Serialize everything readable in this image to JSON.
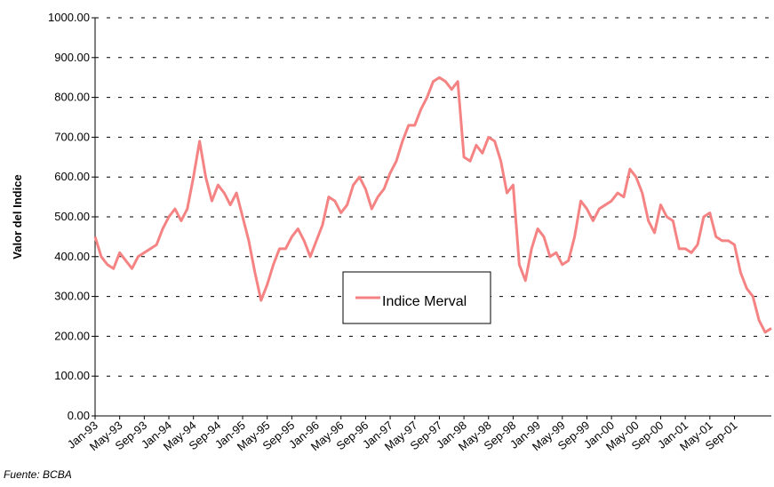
{
  "chart_data": {
    "type": "line",
    "y_label": "Valor del Indice",
    "source": "Fuente: BCBA",
    "categories": [
      "Jan-93",
      null,
      null,
      null,
      "May-93",
      null,
      null,
      null,
      "Sep-93",
      null,
      null,
      null,
      "Jan-94",
      null,
      null,
      null,
      "May-94",
      null,
      null,
      null,
      "Sep-94",
      null,
      null,
      null,
      "Jan-95",
      null,
      null,
      null,
      "May-95",
      null,
      null,
      null,
      "Sep-95",
      null,
      null,
      null,
      "Jan-96",
      null,
      null,
      null,
      "May-96",
      null,
      null,
      null,
      "Sep-96",
      null,
      null,
      null,
      "Jan-97",
      null,
      null,
      null,
      "May-97",
      null,
      null,
      null,
      "Sep-97",
      null,
      null,
      null,
      "Jan-98",
      null,
      null,
      null,
      "May-98",
      null,
      null,
      null,
      "Sep-98",
      null,
      null,
      null,
      "Jan-99",
      null,
      null,
      null,
      "May-99",
      null,
      null,
      null,
      "Sep-99",
      null,
      null,
      null,
      "Jan-00",
      null,
      null,
      null,
      "May-00",
      null,
      null,
      null,
      "Sep-00",
      null,
      null,
      null,
      "Jan-01",
      null,
      null,
      null,
      "May-01",
      null,
      null,
      null,
      "Sep-01",
      null,
      null,
      null,
      null,
      null,
      null
    ],
    "series": [
      {
        "name": "Indice Merval",
        "color": "#f58383",
        "values": [
          450,
          400,
          380,
          370,
          410,
          390,
          370,
          400,
          410,
          420,
          430,
          470,
          500,
          520,
          490,
          520,
          600,
          690,
          600,
          540,
          580,
          560,
          530,
          560,
          500,
          440,
          360,
          290,
          330,
          380,
          420,
          420,
          450,
          470,
          440,
          400,
          440,
          480,
          550,
          540,
          510,
          530,
          580,
          600,
          570,
          520,
          550,
          570,
          610,
          640,
          690,
          730,
          730,
          770,
          800,
          840,
          850,
          840,
          820,
          840,
          650,
          640,
          680,
          660,
          700,
          690,
          640,
          560,
          580,
          380,
          340,
          420,
          470,
          450,
          400,
          410,
          380,
          390,
          450,
          540,
          520,
          490,
          520,
          530,
          540,
          560,
          550,
          620,
          600,
          560,
          490,
          460,
          530,
          500,
          490,
          420,
          420,
          410,
          430,
          500,
          510,
          450,
          440,
          440,
          430,
          360,
          320,
          300,
          240,
          210,
          220
        ]
      }
    ],
    "ylim": [
      0,
      1000
    ],
    "yticks": [
      {
        "value": 0,
        "label": "0.00"
      },
      {
        "value": 100,
        "label": "100.00"
      },
      {
        "value": 200,
        "label": "200.00"
      },
      {
        "value": 300,
        "label": "300.00"
      },
      {
        "value": 400,
        "label": "400.00"
      },
      {
        "value": 500,
        "label": "500.00"
      },
      {
        "value": 600,
        "label": "600.00"
      },
      {
        "value": 700,
        "label": "700.00"
      },
      {
        "value": 800,
        "label": "800.00"
      },
      {
        "value": 900,
        "label": "900.00"
      },
      {
        "value": 1000,
        "label": "1000.00"
      }
    ],
    "grid": true
  }
}
